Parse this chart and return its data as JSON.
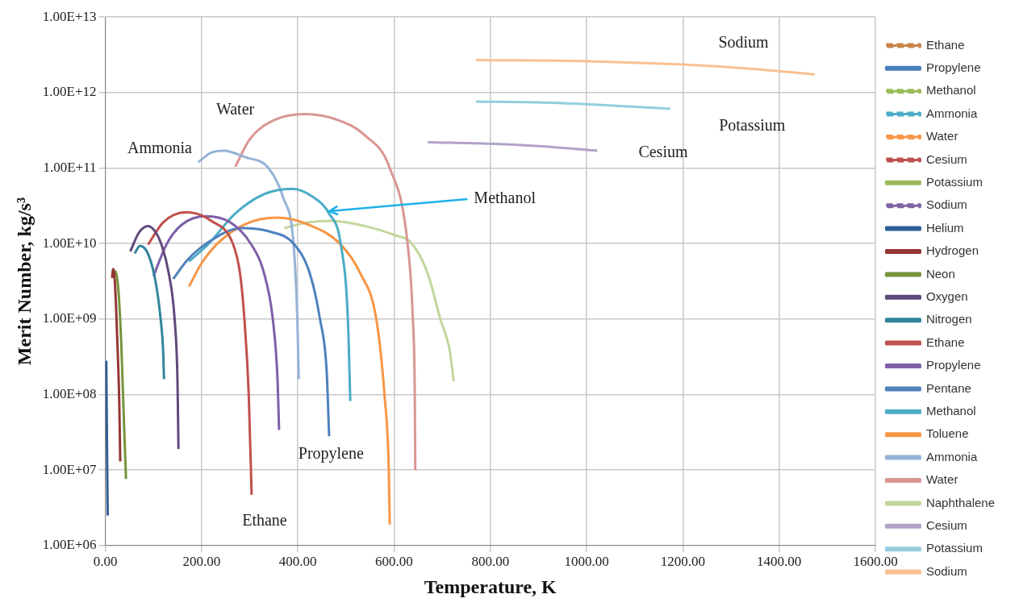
{
  "chart_data": {
    "type": "line",
    "xlabel": "Temperature, K",
    "ylabel": "Merit Number, kg/s³",
    "log": "y",
    "grid": true,
    "legend": "right",
    "marker": "none",
    "xlim": [
      0,
      1600
    ],
    "xticks": [
      {
        "value": 0,
        "label": "0.00"
      },
      {
        "value": 200,
        "label": "200.00"
      },
      {
        "value": 400,
        "label": "400.00"
      },
      {
        "value": 600,
        "label": "600.00"
      },
      {
        "value": 800,
        "label": "800.00"
      },
      {
        "value": 1000,
        "label": "1000.00"
      },
      {
        "value": 1200,
        "label": "1200.00"
      },
      {
        "value": 1400,
        "label": "1400.00"
      },
      {
        "value": 1600,
        "label": "1600.00"
      }
    ],
    "ylim": [
      1000000,
      10000000000000
    ],
    "yticks": [
      {
        "value": 1000000,
        "label": "1.00E+06"
      },
      {
        "value": 10000000,
        "label": "1.00E+07"
      },
      {
        "value": 100000000,
        "label": "1.00E+08"
      },
      {
        "value": 1000000000,
        "label": "1.00E+09"
      },
      {
        "value": 10000000000,
        "label": "1.00E+10"
      },
      {
        "value": 100000000000,
        "label": "1.00E+11"
      },
      {
        "value": 1000000000000,
        "label": "1.00E+12"
      },
      {
        "value": 10000000000000,
        "label": "1.00E+13"
      }
    ],
    "series": [
      {
        "name": "Ethane",
        "color": "#c8844a",
        "line_style": "dashed"
      },
      {
        "name": "Propylene",
        "color": "#4a7ebb",
        "line_style": "solid"
      },
      {
        "name": "Methanol",
        "color": "#9bbb59",
        "line_style": "dashed"
      },
      {
        "name": "Ammonia",
        "color": "#4bacc6",
        "line_style": "dashed"
      },
      {
        "name": "Water",
        "color": "#f79646",
        "line_style": "dashed"
      },
      {
        "name": "Cesium",
        "color": "#c0504d",
        "line_style": "dashed"
      },
      {
        "name": "Potassium",
        "color": "#9bbb59",
        "line_style": "solid"
      },
      {
        "name": "Sodium",
        "color": "#8064a2",
        "line_style": "dashed"
      },
      {
        "name": "Helium",
        "color": "#2f5f98",
        "x": [
          2,
          3,
          4,
          5
        ],
        "values": [
          280000000,
          50000000,
          10000000,
          2500000
        ]
      },
      {
        "name": "Hydrogen",
        "color": "#943634",
        "x": [
          14,
          16,
          20,
          25,
          29,
          31
        ],
        "values": [
          3500000000,
          4600000000,
          3000000000,
          500000000,
          80000000,
          13000000
        ]
      },
      {
        "name": "Neon",
        "color": "#77933c",
        "x": [
          18,
          21,
          27,
          33,
          38,
          43
        ],
        "values": [
          3500000000,
          4300000000,
          2500000000,
          500000000,
          60000000,
          7600000
        ]
      },
      {
        "name": "Oxygen",
        "color": "#5f497a",
        "x": [
          52,
          70,
          89,
          105,
          116,
          132,
          144,
          150,
          152
        ],
        "values": [
          7900000000,
          14000000000,
          17000000000,
          14000000000,
          10000000000,
          4000000000,
          1000000000,
          150000000,
          19000000
        ]
      },
      {
        "name": "Nitrogen",
        "color": "#31859c",
        "x": [
          61,
          72,
          90,
          105,
          115,
          120,
          122
        ],
        "values": [
          7400000000,
          9300000000,
          7000000000,
          3000000000,
          1000000000,
          400000000,
          160000000
        ]
      },
      {
        "name": "Ethane",
        "color": "#c0504d",
        "x": [
          89,
          120,
          168,
          220,
          265,
          280,
          289,
          298,
          304
        ],
        "values": [
          9700000000,
          19000000000,
          26000000000,
          20000000000,
          10000000000,
          4000000000,
          1000000000,
          100000000,
          4700000
        ]
      },
      {
        "name": "Propylene",
        "color": "#7f5fa8",
        "x": [
          100,
          128,
          160,
          209,
          260,
          302,
          330,
          348,
          358,
          361
        ],
        "values": [
          3700000000,
          10000000000,
          18000000000,
          23000000000,
          19000000000,
          10000000000,
          4000000000,
          1000000000,
          150000000,
          34000000
        ]
      },
      {
        "name": "Pentane",
        "color": "#4f81bd",
        "x": [
          141,
          170,
          210,
          283,
          340,
          391,
          425,
          446,
          460,
          465
        ],
        "values": [
          3400000000,
          6000000000,
          10000000000,
          16000000000,
          14500000000,
          10000000000,
          4000000000,
          1000000000,
          200000000,
          28000000
        ]
      },
      {
        "name": "Methanol",
        "color": "#4bacc6",
        "x": [
          174,
          215,
          270,
          330,
          387,
          430,
          465,
          489,
          504,
          509
        ],
        "values": [
          5800000000,
          10000000000,
          25000000000,
          45000000000,
          53000000000,
          42000000000,
          25000000000,
          10000000000,
          1000000000,
          82000000
        ]
      },
      {
        "name": "Toluene",
        "color": "#f79646",
        "x": [
          174,
          200,
          233,
          290,
          357,
          420,
          487,
          530,
          563,
          580,
          589,
          591
        ],
        "values": [
          2700000000,
          5500000000,
          10000000000,
          18000000000,
          22000000000,
          18000000000,
          10000000000,
          4000000000,
          1000000000,
          100000000,
          10000000,
          1900000
        ]
      },
      {
        "name": "Ammonia",
        "color": "#95b3d7",
        "x": [
          193,
          220,
          246,
          290,
          339,
          370,
          391,
          399,
          402
        ],
        "values": [
          120000000000,
          160000000000,
          170000000000,
          140000000000,
          100000000000,
          40000000000,
          10000000000,
          1000000000,
          160000000
        ]
      },
      {
        "name": "Water",
        "color": "#d99694",
        "x": [
          270,
          300,
          350,
          415,
          480,
          540,
          591,
          628,
          639,
          643,
          644
        ],
        "values": [
          104000000000,
          240000000000,
          430000000000,
          520000000000,
          440000000000,
          270000000000,
          100000000000,
          10000000000,
          1000000000,
          100000000,
          10000000
        ]
      },
      {
        "name": "Naphthalene",
        "color": "#c3d69b",
        "x": [
          372,
          420,
          469,
          540,
          600,
          637,
          670,
          696,
          715,
          724
        ],
        "values": [
          16000000000,
          19000000000,
          20000000000,
          17000000000,
          13000000000,
          10000000000,
          4000000000,
          1000000000,
          400000000,
          150000000
        ]
      },
      {
        "name": "Cesium",
        "color": "#b2a2c7",
        "x": [
          670,
          800,
          900,
          1022
        ],
        "values": [
          220000000000,
          210000000000,
          195000000000,
          170000000000
        ]
      },
      {
        "name": "Potassium",
        "color": "#93cddd",
        "x": [
          770,
          900,
          1000,
          1100,
          1174
        ],
        "values": [
          760000000000,
          740000000000,
          700000000000,
          650000000000,
          610000000000
        ]
      },
      {
        "name": "Sodium",
        "color": "#fac090",
        "x": [
          770,
          1000,
          1200,
          1350,
          1474
        ],
        "values": [
          2700000000000,
          2600000000000,
          2350000000000,
          2050000000000,
          1740000000000
        ]
      }
    ],
    "annotations": [
      "Sodium",
      "Potassium",
      "Cesium",
      "Water",
      "Ammonia",
      {
        "text": "Methanol",
        "x": 465,
        "y": 27000000000
      },
      "Propylene",
      "Ethane"
    ]
  }
}
